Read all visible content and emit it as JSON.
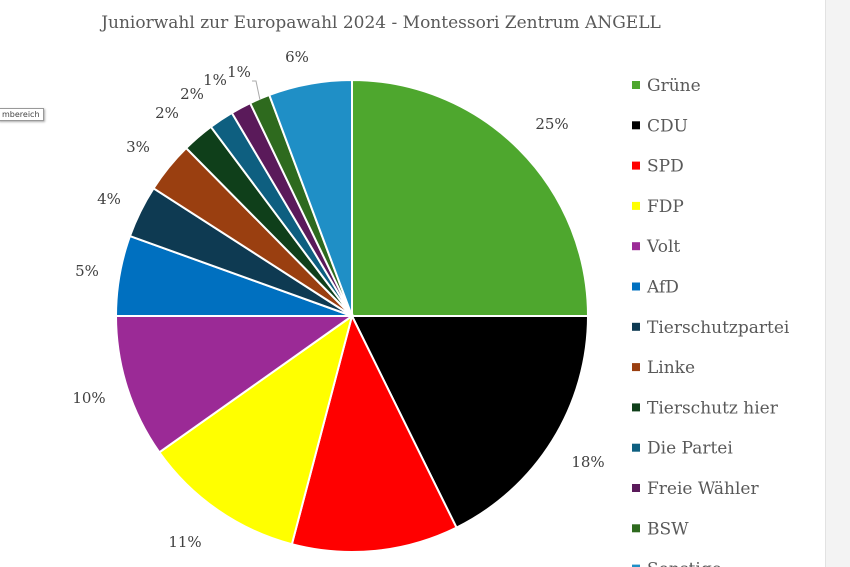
{
  "tooltip": "mbereich",
  "chart_data": {
    "type": "pie",
    "title": "Juniorwahl zur Europawahl 2024 - Montessori Zentrum ANGELL",
    "legend_position": "right",
    "categories": [
      "Grüne",
      "CDU",
      "SPD",
      "FDP",
      "Volt",
      "AfD",
      "Tierschutzpartei",
      "Linke",
      "Tierschutz hier",
      "Die Partei",
      "Freie Wähler",
      "BSW",
      "Sonstige"
    ],
    "values": [
      25,
      17.7,
      11.4,
      11.1,
      9.8,
      5.5,
      3.6,
      3.5,
      2.2,
      1.7,
      1.4,
      1.4,
      5.7
    ],
    "labels": [
      "25%",
      "18%",
      "",
      "11%",
      "10%",
      "5%",
      "4%",
      "3%",
      "2%",
      "2%",
      "1%",
      "1%",
      "6%"
    ],
    "colors": [
      "#4ea72e",
      "#000000",
      "#ff0000",
      "#ffff00",
      "#9b2a96",
      "#0070c0",
      "#0e3a52",
      "#9a3f10",
      "#0f3f1a",
      "#0e5f80",
      "#5a1a5a",
      "#2e6a1e",
      "#1f8fc6"
    ]
  }
}
